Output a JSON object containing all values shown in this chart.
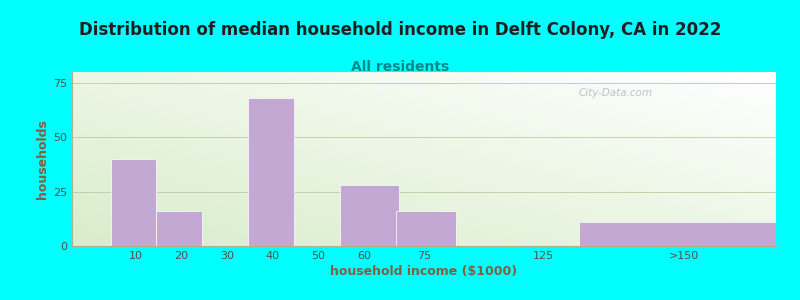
{
  "title": "Distribution of median household income in Delft Colony, CA in 2022",
  "subtitle": "All residents",
  "xlabel": "household income ($1000)",
  "ylabel": "households",
  "background_outer": "#00FFFF",
  "bar_color": "#C4A8D4",
  "bar_edge_color": "#FFFFFF",
  "categories": [
    "10",
    "20",
    "30",
    "40",
    "50",
    "60",
    "75",
    "125",
    ">150"
  ],
  "values": [
    40,
    16,
    0,
    68,
    0,
    28,
    16,
    0,
    11
  ],
  "ylim": [
    0,
    80
  ],
  "yticks": [
    0,
    25,
    50,
    75
  ],
  "title_fontsize": 12,
  "subtitle_fontsize": 10,
  "axis_label_fontsize": 9,
  "tick_fontsize": 8,
  "watermark": "City-Data.com"
}
